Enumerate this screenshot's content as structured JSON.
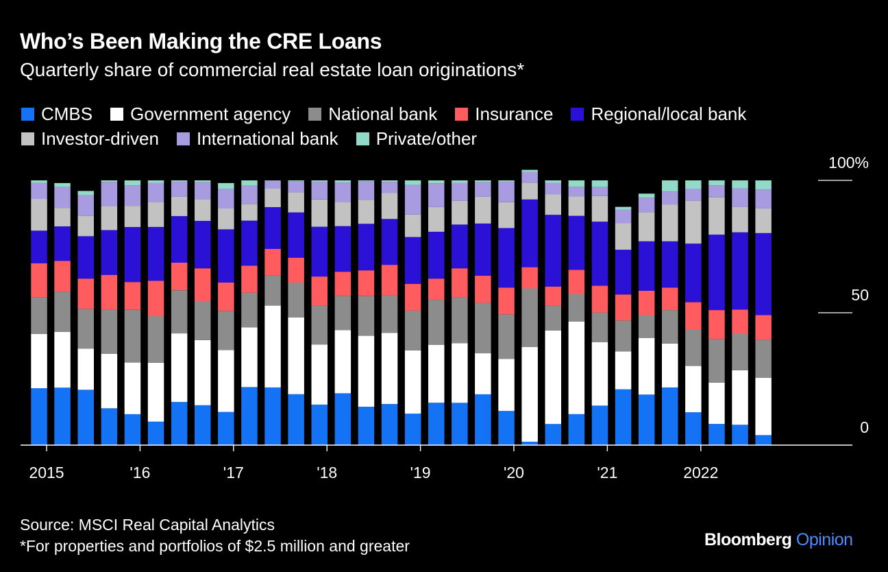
{
  "title": "Who’s Been Making the CRE Loans",
  "subtitle": "Quarterly share of commercial real estate loan originations*",
  "source": "Source: MSCI Real Capital Analytics",
  "footnote": "*For properties and portfolios of $2.5 million and greater",
  "brand": {
    "name": "Bloomberg",
    "suffix": "Opinion"
  },
  "legend_rows": [
    [
      {
        "name": "CMBS",
        "color": "#1472f4"
      },
      {
        "name": "Government agency",
        "color": "#ffffff"
      },
      {
        "name": "National bank",
        "color": "#8c8c8c"
      },
      {
        "name": "Insurance",
        "color": "#ff5c5f"
      },
      {
        "name": "Regional/local bank",
        "color": "#2b10d6"
      }
    ],
    [
      {
        "name": "Investor-driven",
        "color": "#c2c2c2"
      },
      {
        "name": "International bank",
        "color": "#a89be0"
      },
      {
        "name": "Private/other",
        "color": "#93d9c8"
      }
    ]
  ],
  "chart_data": {
    "type": "bar",
    "stacked": true,
    "xlabel": "",
    "ylabel": "",
    "ylim": [
      0,
      100
    ],
    "y_ticks": [
      {
        "value": 0,
        "label": "0"
      },
      {
        "value": 50,
        "label": "50"
      },
      {
        "value": 100,
        "label": "100%"
      }
    ],
    "x_tick_labels": [
      {
        "index": 0,
        "label": "2015"
      },
      {
        "index": 4,
        "label": "'16"
      },
      {
        "index": 8,
        "label": "'17"
      },
      {
        "index": 12,
        "label": "'18"
      },
      {
        "index": 16,
        "label": "'19"
      },
      {
        "index": 20,
        "label": "'20"
      },
      {
        "index": 24,
        "label": "'21"
      },
      {
        "index": 28,
        "label": "2022"
      }
    ],
    "categories": [
      "2015 Q1",
      "2015 Q2",
      "2015 Q3",
      "2015 Q4",
      "2016 Q1",
      "2016 Q2",
      "2016 Q3",
      "2016 Q4",
      "2017 Q1",
      "2017 Q2",
      "2017 Q3",
      "2017 Q4",
      "2018 Q1",
      "2018 Q2",
      "2018 Q3",
      "2018 Q4",
      "2019 Q1",
      "2019 Q2",
      "2019 Q3",
      "2019 Q4",
      "2020 Q1",
      "2020 Q2",
      "2020 Q3",
      "2020 Q4",
      "2021 Q1",
      "2021 Q2",
      "2021 Q3",
      "2021 Q4",
      "2022 Q1",
      "2022 Q2",
      "2022 Q3",
      "2022 Q4"
    ],
    "series": [
      {
        "name": "CMBS",
        "color": "#1472f4",
        "values": [
          21.5,
          21.7,
          20.9,
          13.9,
          11.7,
          8.9,
          16.3,
          15.1,
          12.5,
          21.9,
          21.8,
          19.2,
          15.3,
          19.6,
          14.5,
          15.5,
          11.9,
          16.0,
          16.0,
          19.2,
          12.9,
          1.3,
          8.0,
          11.7,
          14.9,
          21.1,
          19.1,
          21.8,
          12.4,
          8.0,
          7.7,
          3.8
        ]
      },
      {
        "name": "Government agency",
        "color": "#ffffff",
        "values": [
          20.5,
          21.1,
          15.5,
          20.6,
          19.5,
          22.2,
          25.9,
          24.6,
          23.4,
          22.6,
          30.9,
          29.0,
          22.7,
          23.8,
          26.8,
          26.9,
          23.9,
          21.9,
          22.5,
          15.5,
          19.6,
          35.8,
          35.3,
          35.0,
          24.0,
          14.3,
          21.4,
          16.6,
          17.5,
          15.6,
          20.6,
          21.6
        ]
      },
      {
        "name": "National bank",
        "color": "#8c8c8c",
        "values": [
          13.9,
          15.2,
          15.1,
          16.7,
          19.9,
          17.6,
          16.3,
          14.6,
          14.8,
          13.1,
          11.4,
          13.2,
          14.7,
          13.0,
          15.0,
          14.1,
          15.0,
          17.0,
          17.4,
          19.1,
          16.9,
          22.1,
          9.4,
          10.3,
          11.2,
          11.7,
          8.6,
          12.6,
          13.9,
          16.5,
          13.8,
          14.4
        ]
      },
      {
        "name": "Insurance",
        "color": "#ff5c5f",
        "values": [
          12.8,
          11.6,
          11.4,
          13.1,
          10.5,
          13.4,
          10.4,
          12.5,
          10.7,
          10.2,
          10.0,
          9.4,
          11.0,
          9.1,
          9.7,
          11.6,
          10.1,
          8.0,
          10.9,
          10.2,
          10.1,
          8.0,
          7.2,
          9.2,
          10.1,
          9.8,
          9.2,
          8.5,
          10.2,
          10.9,
          9.1,
          9.3
        ]
      },
      {
        "name": "Regional/local bank",
        "color": "#2b10d6",
        "values": [
          12.3,
          13.0,
          16.0,
          16.9,
          20.8,
          20.3,
          17.6,
          17.9,
          20.1,
          17.0,
          15.8,
          17.1,
          18.8,
          17.2,
          17.6,
          17.3,
          17.7,
          17.7,
          16.5,
          19.7,
          22.5,
          25.6,
          27.1,
          20.4,
          24.2,
          16.9,
          18.7,
          17.5,
          22.1,
          28.5,
          29.2,
          31.0
        ]
      },
      {
        "name": "Investor-driven",
        "color": "#c2c2c2",
        "values": [
          12.0,
          7.0,
          7.7,
          9.1,
          8.0,
          9.3,
          7.3,
          8.2,
          7.9,
          6.3,
          7.0,
          7.6,
          10.3,
          9.0,
          9.1,
          9.9,
          8.5,
          9.3,
          9.0,
          10.1,
          9.8,
          6.3,
          7.7,
          7.3,
          9.7,
          10.0,
          11.0,
          13.8,
          16.2,
          14.1,
          9.6,
          9.3
        ]
      },
      {
        "name": "International bank",
        "color": "#a89be0",
        "values": [
          6.0,
          7.9,
          7.8,
          9.1,
          7.7,
          7.4,
          5.7,
          6.4,
          7.4,
          6.9,
          3.0,
          4.2,
          6.8,
          7.5,
          7.0,
          4.1,
          11.2,
          9.0,
          6.8,
          5.5,
          7.7,
          4.1,
          4.4,
          3.6,
          3.4,
          5.2,
          5.5,
          5.0,
          4.6,
          4.5,
          7.0,
          7.2
        ]
      },
      {
        "name": "Private/other",
        "color": "#93d9c8",
        "values": [
          1.0,
          1.5,
          1.6,
          0.6,
          1.9,
          0.9,
          0.5,
          0.7,
          2.2,
          2.0,
          0.1,
          0.3,
          0.4,
          0.8,
          0.3,
          0.6,
          1.7,
          1.1,
          0.9,
          0.7,
          0.5,
          0.8,
          0.9,
          2.5,
          2.5,
          1.0,
          1.5,
          4.2,
          3.1,
          1.9,
          3.0,
          3.4
        ]
      }
    ]
  }
}
